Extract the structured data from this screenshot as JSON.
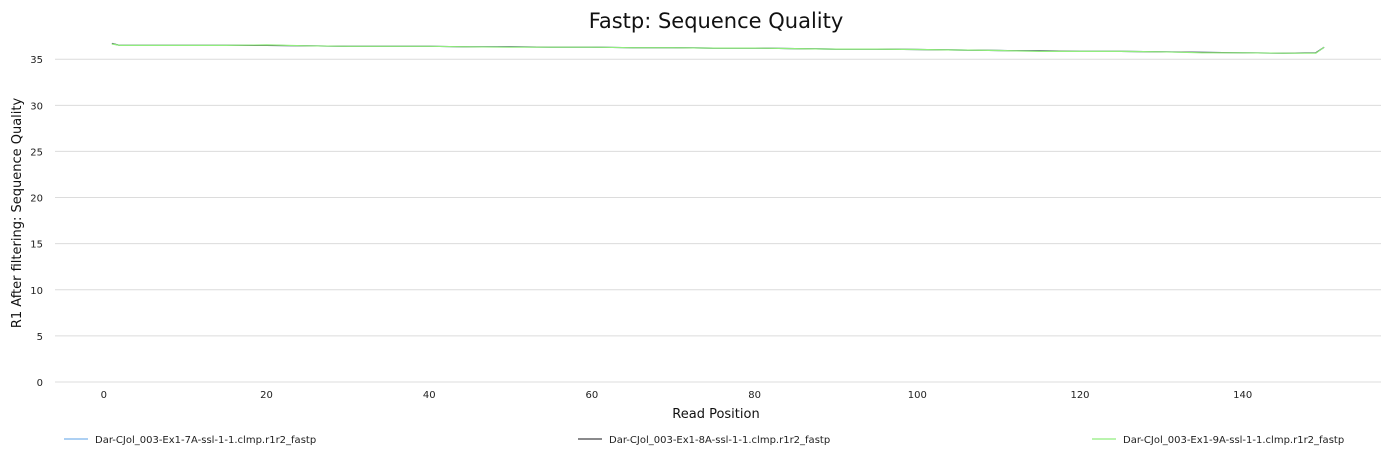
{
  "chart_data": {
    "type": "line",
    "title": "Fastp: Sequence Quality",
    "xlabel": "Read Position",
    "ylabel": "R1 After filtering: Sequence Quality",
    "xlim": [
      -6,
      157
    ],
    "ylim": [
      0,
      37.3
    ],
    "x_ticks": [
      0,
      20,
      40,
      60,
      80,
      100,
      120,
      140
    ],
    "y_ticks": [
      0,
      5,
      10,
      15,
      20,
      25,
      30,
      35
    ],
    "grid": true,
    "legend_position": "bottom",
    "series": [
      {
        "name": "Dar-CJol_003-Ex1-7A-ssl-1-1.clmp.r1r2_fastp",
        "color": "#7cb5ec",
        "x": [
          1,
          2,
          5,
          10,
          15,
          20,
          25,
          30,
          35,
          40,
          45,
          50,
          55,
          60,
          65,
          70,
          75,
          80,
          85,
          90,
          95,
          100,
          105,
          110,
          115,
          120,
          125,
          130,
          135,
          140,
          145,
          149,
          150
        ],
        "y": [
          36.7,
          36.5,
          36.5,
          36.5,
          36.5,
          36.5,
          36.45,
          36.4,
          36.4,
          36.4,
          36.35,
          36.35,
          36.3,
          36.3,
          36.25,
          36.25,
          36.2,
          36.2,
          36.15,
          36.1,
          36.1,
          36.05,
          36.0,
          35.95,
          35.9,
          35.85,
          35.85,
          35.8,
          35.75,
          35.7,
          35.65,
          35.7,
          36.3
        ]
      },
      {
        "name": "Dar-CJol_003-Ex1-8A-ssl-1-1.clmp.r1r2_fastp",
        "color": "#434348",
        "x": [
          1,
          2,
          5,
          10,
          15,
          20,
          25,
          30,
          35,
          40,
          45,
          50,
          55,
          60,
          65,
          70,
          75,
          80,
          85,
          90,
          95,
          100,
          105,
          110,
          115,
          120,
          125,
          130,
          135,
          140,
          145,
          149,
          150
        ],
        "y": [
          36.7,
          36.5,
          36.5,
          36.5,
          36.5,
          36.5,
          36.45,
          36.4,
          36.4,
          36.4,
          36.35,
          36.35,
          36.3,
          36.3,
          36.25,
          36.25,
          36.2,
          36.2,
          36.15,
          36.1,
          36.1,
          36.05,
          36.0,
          35.95,
          35.9,
          35.85,
          35.85,
          35.8,
          35.75,
          35.7,
          35.65,
          35.7,
          36.3
        ]
      },
      {
        "name": "Dar-CJol_003-Ex1-9A-ssl-1-1.clmp.r1r2_fastp",
        "color": "#90ed7d",
        "x": [
          1,
          2,
          5,
          10,
          15,
          20,
          25,
          30,
          35,
          40,
          45,
          50,
          55,
          60,
          65,
          70,
          75,
          80,
          85,
          90,
          95,
          100,
          105,
          110,
          115,
          120,
          125,
          130,
          135,
          140,
          145,
          149,
          150
        ],
        "y": [
          36.65,
          36.5,
          36.5,
          36.5,
          36.5,
          36.55,
          36.45,
          36.4,
          36.4,
          36.4,
          36.35,
          36.3,
          36.3,
          36.3,
          36.25,
          36.25,
          36.2,
          36.2,
          36.15,
          36.1,
          36.1,
          36.05,
          36.0,
          35.95,
          35.85,
          35.85,
          35.85,
          35.8,
          35.7,
          35.7,
          35.65,
          35.65,
          36.3
        ]
      }
    ]
  }
}
